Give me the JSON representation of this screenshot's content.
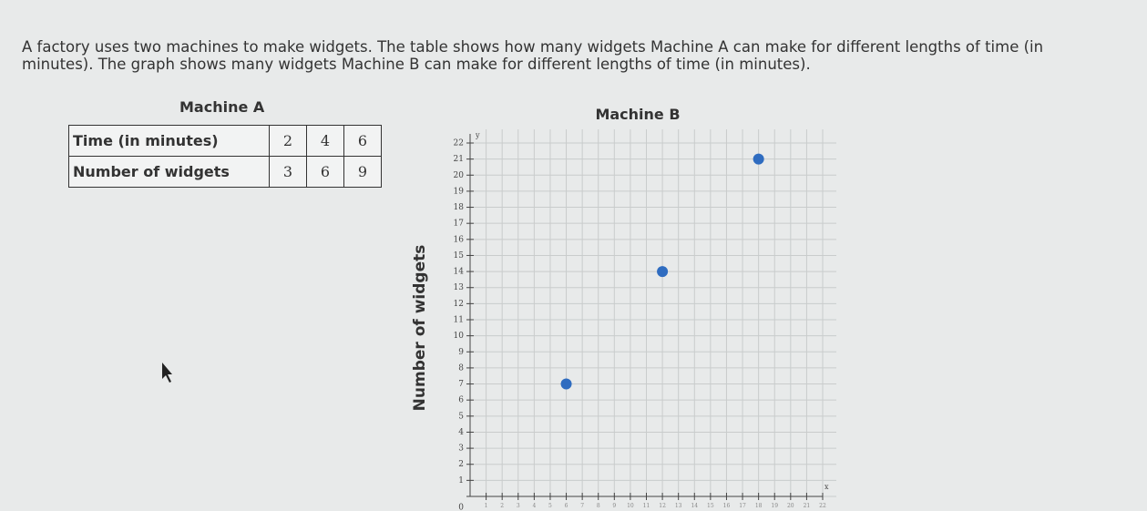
{
  "question": {
    "lines": [
      "A factory uses two machines to make widgets. The table shows how many widgets Machine A can make for different lengths of time (in",
      "minutes). The graph shows many widgets Machine B can make for different lengths of time (in minutes)."
    ]
  },
  "machine_a": {
    "title": "Machine A",
    "rows": [
      [
        "Time (in minutes)",
        2,
        4,
        6
      ],
      [
        "Number of widgets",
        3,
        6,
        9
      ]
    ]
  },
  "chart_data": {
    "type": "scatter",
    "title": "Machine B",
    "y_label": "Number of widgets",
    "x_axis_letter": "x",
    "y_axis_letter": "y",
    "series": [
      {
        "color": "#2f6cc0",
        "x": [
          6,
          12,
          18
        ],
        "values": [
          7,
          14,
          21
        ]
      }
    ],
    "xlim": [
      0,
      22
    ],
    "ylim": [
      0,
      22
    ],
    "xticks": [
      1,
      2,
      3,
      4,
      5,
      6,
      7,
      8,
      9,
      10,
      11,
      12,
      13,
      14,
      15,
      16,
      17,
      18,
      19,
      20,
      21,
      22
    ],
    "yticks": [
      0,
      1,
      2,
      3,
      4,
      5,
      6,
      7,
      8,
      9,
      10,
      11,
      12,
      13,
      14,
      15,
      16,
      17,
      18,
      19,
      20,
      21,
      22
    ],
    "grid": true
  }
}
